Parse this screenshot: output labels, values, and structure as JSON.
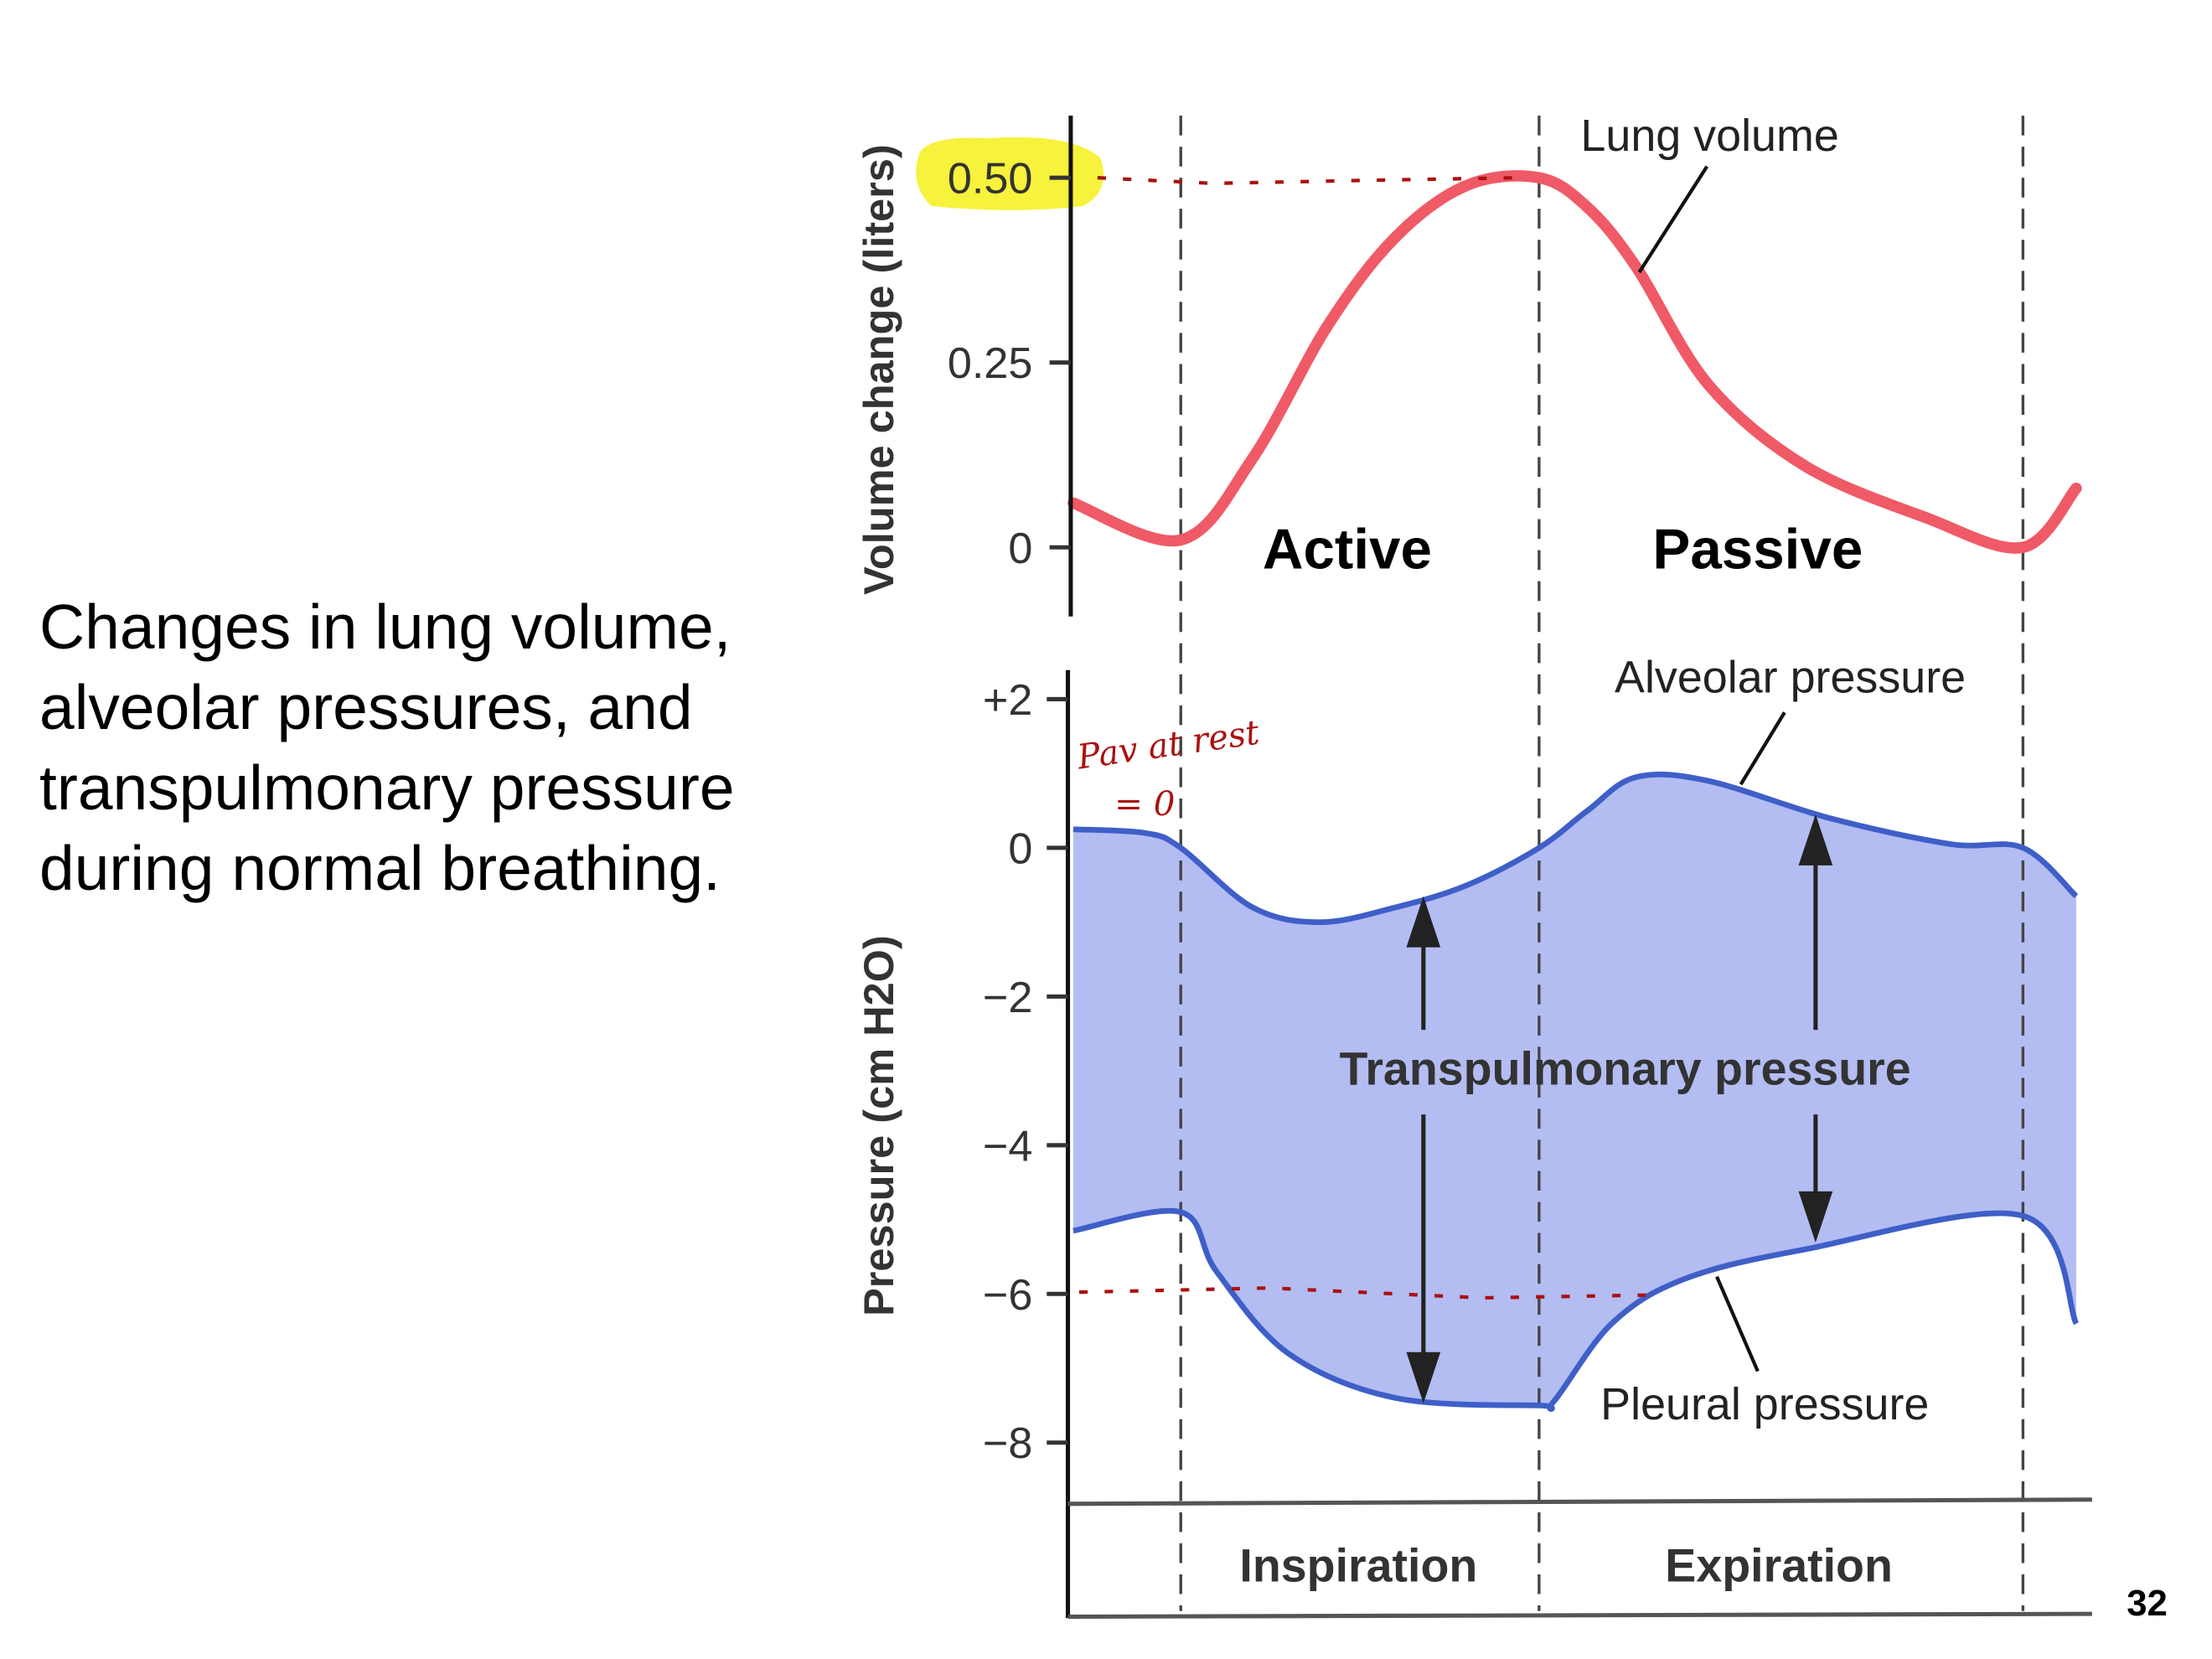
{
  "slide": {
    "caption_lines": [
      "Changes in lung volume,",
      "alveolar pressures, and",
      "transpulmonary pressure",
      "during normal breathing."
    ],
    "page_number": "32"
  },
  "chart_data": [
    {
      "type": "line",
      "ylabel": "Volume change (liters)",
      "yticks": [
        "0.50",
        "0.25",
        "0"
      ],
      "ylim": [
        -0.09,
        0.58
      ],
      "phases": [
        "Active",
        "Passive"
      ],
      "series": [
        {
          "name": "Lung volume",
          "color": "#ef5a66",
          "points": [
            [
              -0.3,
              0.06
            ],
            [
              0,
              0.01
            ],
            [
              0.2,
              0.12
            ],
            [
              0.41,
              0.3
            ],
            [
              0.6,
              0.42
            ],
            [
              0.8,
              0.49
            ],
            [
              1,
              0.5
            ],
            [
              1.1,
              0.46
            ],
            [
              1.2,
              0.38
            ],
            [
              1.35,
              0.22
            ],
            [
              1.55,
              0.11
            ],
            [
              1.8,
              0.04
            ],
            [
              2,
              0
            ],
            [
              2.11,
              0.08
            ]
          ]
        }
      ],
      "highlight_tick": "0.50",
      "highlight_color": "#f7f23c"
    },
    {
      "type": "area",
      "ylabel": "Pressure (cm H2O)",
      "yticks": [
        "+2",
        "0",
        "−2",
        "−4",
        "−6",
        "−8"
      ],
      "ylim": [
        -8.9,
        2.4
      ],
      "band_label": "Transpulmonary pressure",
      "band_color": "#b3bdf2",
      "line_color": "#3f5fc8",
      "series": [
        {
          "name": "Alveolar pressure",
          "points": [
            [
              -0.3,
              0.25
            ],
            [
              -0.1,
              0.2
            ],
            [
              0,
              0
            ],
            [
              0.2,
              -0.8
            ],
            [
              0.39,
              -1.0
            ],
            [
              0.6,
              -0.8
            ],
            [
              0.8,
              -0.5
            ],
            [
              1,
              0
            ],
            [
              1.1,
              0.5
            ],
            [
              1.2,
              0.95
            ],
            [
              1.35,
              0.9
            ],
            [
              1.6,
              0.4
            ],
            [
              1.85,
              0.05
            ],
            [
              2,
              0
            ],
            [
              2.11,
              -0.65
            ]
          ]
        },
        {
          "name": "Pleural pressure",
          "points": [
            [
              -0.3,
              -5.15
            ],
            [
              0,
              -4.9
            ],
            [
              0.1,
              -5.7
            ],
            [
              0.3,
              -6.8
            ],
            [
              0.6,
              -7.4
            ],
            [
              1,
              -7.5
            ],
            [
              1.03,
              -7.45
            ],
            [
              1.15,
              -6.4
            ],
            [
              1.3,
              -5.8
            ],
            [
              1.55,
              -5.4
            ],
            [
              2,
              -4.95
            ],
            [
              2.11,
              -6.4
            ]
          ]
        }
      ],
      "phase_labels": [
        "Inspiration",
        "Expiration"
      ]
    }
  ],
  "annotations": {
    "handwritten_line1": "Pav at rest",
    "handwritten_line2": "= 0",
    "color": "#a11111"
  }
}
